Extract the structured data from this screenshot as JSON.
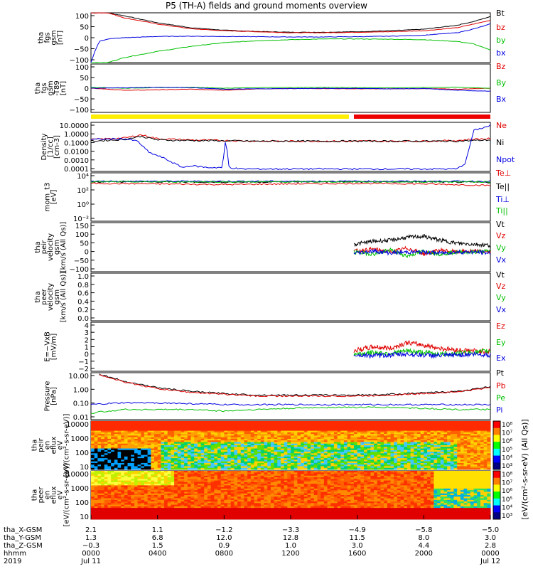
{
  "title": "P5 (TH-A) fields and ground moments overview",
  "chart_data": [
    {
      "type": "line",
      "panel_label": [
        "tha",
        "fgs",
        "gsm",
        "[nT]"
      ],
      "ylim": [
        -100,
        100
      ],
      "yticks": [
        "100",
        "50",
        "0",
        "−50",
        "−100"
      ],
      "series": [
        {
          "name": "Bt",
          "color": "#000000",
          "x": [
            0,
            1,
            2,
            4,
            6,
            8,
            10,
            12,
            14,
            16,
            18,
            20,
            22,
            23,
            24
          ],
          "values": [
            100,
            100,
            88,
            60,
            40,
            30,
            25,
            22,
            22,
            24,
            28,
            34,
            50,
            65,
            85
          ]
        },
        {
          "name": "bz",
          "color": "#e00000",
          "x": [
            0,
            1,
            2,
            4,
            6,
            8,
            10,
            12,
            14,
            16,
            18,
            20,
            22,
            23,
            24
          ],
          "values": [
            100,
            100,
            80,
            55,
            36,
            28,
            24,
            20,
            20,
            22,
            24,
            28,
            40,
            55,
            70
          ]
        },
        {
          "name": "by",
          "color": "#00c000",
          "x": [
            0,
            1,
            2,
            4,
            6,
            8,
            10,
            12,
            14,
            16,
            18,
            20,
            22,
            23,
            24
          ],
          "values": [
            -100,
            -100,
            -80,
            -55,
            -35,
            -20,
            -12,
            -8,
            -5,
            -5,
            -6,
            -8,
            -15,
            -25,
            -50
          ]
        },
        {
          "name": "bx",
          "color": "#0000e0",
          "x": [
            0,
            0.2,
            0.5,
            1,
            2,
            4,
            6,
            8,
            10,
            12,
            14,
            16,
            18,
            20,
            22,
            23,
            24
          ],
          "values": [
            -100,
            -60,
            -15,
            -5,
            0,
            5,
            6,
            5,
            4,
            3,
            3,
            4,
            6,
            10,
            20,
            35,
            55
          ]
        }
      ]
    },
    {
      "type": "line",
      "panel_label": [
        "tha",
        "fgs",
        "gsm",
        "-T89",
        "[nT]"
      ],
      "ylim": [
        -120,
        120
      ],
      "yticks": [
        "100",
        "50",
        "0",
        "−50",
        "−100"
      ],
      "series": [
        {
          "name": "Bz",
          "color": "#e00000",
          "x": [
            0,
            2,
            4,
            6,
            8,
            10,
            12,
            14,
            16,
            18,
            20,
            22,
            24
          ],
          "values": [
            0,
            -10,
            -8,
            -5,
            -10,
            -3,
            -2,
            -2,
            -3,
            -3,
            -2,
            -5,
            0
          ]
        },
        {
          "name": "By",
          "color": "#00c000",
          "x": [
            0,
            2,
            4,
            6,
            8,
            10,
            12,
            14,
            16,
            18,
            20,
            22,
            24
          ],
          "values": [
            5,
            0,
            3,
            5,
            0,
            3,
            4,
            5,
            3,
            2,
            4,
            5,
            0
          ]
        },
        {
          "name": "Bx",
          "color": "#0000e0",
          "x": [
            0,
            2,
            4,
            6,
            8,
            10,
            12,
            14,
            16,
            18,
            20,
            22,
            24
          ],
          "values": [
            0,
            2,
            5,
            3,
            -5,
            -3,
            -2,
            -1,
            -1,
            -3,
            -2,
            -10,
            -15
          ]
        }
      ]
    },
    {
      "type": "line",
      "log": true,
      "panel_label": [
        "Density",
        "[1/cc]",
        "[cm-3]"
      ],
      "ylim": [
        0.0001,
        100
      ],
      "yticks": [
        "10.0000",
        "1.0000",
        "0.1000",
        "0.0100",
        "0.0010",
        "0.0001"
      ],
      "series": [
        {
          "name": "Ne",
          "color": "#e00000",
          "x": [
            0,
            2,
            3,
            4,
            6,
            8,
            10,
            12,
            14,
            16,
            18,
            20,
            22,
            23,
            24
          ],
          "values": [
            0.8,
            1.2,
            3,
            1,
            0.7,
            0.6,
            0.5,
            0.5,
            0.5,
            0.5,
            0.5,
            0.5,
            0.6,
            0.9,
            1
          ]
        },
        {
          "name": "Ni",
          "color": "#000000",
          "x": [
            0,
            2,
            3,
            4,
            6,
            8,
            10,
            12,
            14,
            16,
            18,
            20,
            22,
            23,
            24
          ],
          "values": [
            0.5,
            0.8,
            2,
            0.7,
            0.6,
            0.55,
            0.5,
            0.5,
            0.5,
            0.5,
            0.5,
            0.5,
            0.5,
            0.6,
            0.7
          ]
        },
        {
          "name": "Npot",
          "color": "#0000e0",
          "x": [
            0,
            2,
            2.8,
            3.5,
            4.3,
            5.5,
            6,
            7,
            7.9,
            8.1,
            8.3,
            9,
            12,
            16,
            20,
            22,
            22.5,
            23,
            24
          ],
          "values": [
            0.8,
            1,
            0.5,
            0.02,
            0.005,
            0.0003,
            0.0005,
            0.0003,
            0.0003,
            1,
            0.0003,
            0.0002,
            0.0002,
            0.0002,
            0.0002,
            0.0002,
            0.001,
            10,
            40
          ]
        }
      ]
    },
    {
      "type": "line",
      "log": true,
      "panel_label": [
        "mom_t3",
        "[eV]"
      ],
      "ylim": [
        0.01,
        100000
      ],
      "yticks": [
        "10⁴",
        "10²",
        "10⁰",
        "10⁻²"
      ],
      "series": [
        {
          "name": "Te⊥",
          "color": "#e00000",
          "x": [
            0,
            4,
            8,
            12,
            16,
            20,
            24
          ],
          "values": [
            3000,
            2500,
            2000,
            2500,
            3000,
            2500,
            1500
          ]
        },
        {
          "name": "Te||",
          "color": "#000000",
          "x": [
            0,
            4,
            8,
            12,
            16,
            20,
            24
          ],
          "values": [
            5000,
            5000,
            4500,
            5000,
            5000,
            5000,
            4000
          ]
        },
        {
          "name": "Ti⊥",
          "color": "#0000e0",
          "x": [
            0,
            4,
            8,
            12,
            16,
            20,
            24
          ],
          "values": [
            6000,
            6000,
            6000,
            6000,
            6000,
            6000,
            6000
          ]
        },
        {
          "name": "Ti||",
          "color": "#00c000",
          "x": [
            0,
            4,
            8,
            12,
            16,
            20,
            24
          ],
          "values": [
            5000,
            5000,
            5000,
            5000,
            5000,
            5000,
            5000
          ]
        }
      ]
    },
    {
      "type": "line",
      "panel_label": [
        "tha",
        "peir",
        "velocity",
        "gsm",
        "[km/s (All Qs)]"
      ],
      "ylim": [
        -100,
        150
      ],
      "yticks": [
        "150",
        "100",
        "50",
        "0",
        "−50",
        "−100"
      ],
      "x_start": 15.8,
      "series": [
        {
          "name": "Vt",
          "color": "#000000",
          "x": [
            15.8,
            17,
            18,
            19,
            20,
            21,
            22,
            23,
            24
          ],
          "values": [
            40,
            55,
            60,
            75,
            80,
            60,
            45,
            40,
            35
          ]
        },
        {
          "name": "Vz",
          "color": "#e00000",
          "x": [
            15.8,
            17,
            18,
            19,
            20,
            21,
            22,
            23,
            24
          ],
          "values": [
            5,
            15,
            0,
            20,
            -10,
            10,
            0,
            5,
            0
          ]
        },
        {
          "name": "Vy",
          "color": "#00c000",
          "x": [
            15.8,
            17,
            18,
            19,
            20,
            21,
            22,
            23,
            24
          ],
          "values": [
            0,
            -10,
            10,
            -20,
            5,
            -10,
            0,
            0,
            5
          ]
        },
        {
          "name": "Vx",
          "color": "#0000e0",
          "x": [
            15.8,
            17,
            18,
            19,
            20,
            21,
            22,
            23,
            24
          ],
          "values": [
            -5,
            5,
            -5,
            0,
            0,
            -5,
            0,
            0,
            -5
          ]
        }
      ]
    },
    {
      "type": "line",
      "panel_label": [
        "tha",
        "peer",
        "velocity",
        "gsm",
        "[km/s (All Qs)]"
      ],
      "ylim": [
        0,
        1
      ],
      "yticks": [
        "1.0",
        "0.8",
        "0.6",
        "0.4",
        "0.2",
        "0.0"
      ],
      "series": [
        {
          "name": "Vt",
          "color": "#000000",
          "x": [],
          "values": []
        },
        {
          "name": "Vz",
          "color": "#e00000",
          "x": [],
          "values": []
        },
        {
          "name": "Vy",
          "color": "#00c000",
          "x": [],
          "values": []
        },
        {
          "name": "Vx",
          "color": "#0000e0",
          "x": [],
          "values": []
        }
      ]
    },
    {
      "type": "line",
      "panel_label": [
        "E=−VxB",
        "[mV/m]"
      ],
      "ylim": [
        -2,
        4
      ],
      "yticks": [
        "4",
        "3",
        "2",
        "1",
        "0",
        "−1",
        "−2"
      ],
      "x_start": 15.8,
      "series": [
        {
          "name": "Ez",
          "color": "#e00000",
          "x": [
            15.8,
            17,
            18,
            19,
            20,
            21,
            22,
            23,
            24
          ],
          "values": [
            0.5,
            1,
            0.8,
            1.5,
            1.2,
            0.8,
            0.6,
            0.5,
            0.4
          ]
        },
        {
          "name": "Ey",
          "color": "#00c000",
          "x": [
            15.8,
            17,
            18,
            19,
            20,
            21,
            22,
            23,
            24
          ],
          "values": [
            0.1,
            0.3,
            0.2,
            0.5,
            0.3,
            0.1,
            0.2,
            0.3,
            0.5
          ]
        },
        {
          "name": "Ex",
          "color": "#0000e0",
          "x": [
            15.8,
            17,
            18,
            19,
            20,
            21,
            22,
            23,
            24
          ],
          "values": [
            0,
            -0.1,
            0,
            0.1,
            0,
            -0.1,
            0,
            0.1,
            0
          ]
        }
      ]
    },
    {
      "type": "line",
      "log": true,
      "panel_label": [
        "Pressure",
        "[nPa]"
      ],
      "ylim": [
        0.003,
        20
      ],
      "yticks": [
        "10.00",
        "1.00",
        "0.10",
        "0.01"
      ],
      "series": [
        {
          "name": "Pt",
          "color": "#000000",
          "x": [
            0.5,
            1,
            2,
            4,
            6,
            8,
            10,
            12,
            14,
            16,
            18,
            20,
            22,
            23,
            24
          ],
          "values": [
            15,
            10,
            4,
            1.2,
            0.6,
            0.4,
            0.3,
            0.3,
            0.3,
            0.3,
            0.35,
            0.45,
            0.6,
            0.9,
            1.5
          ]
        },
        {
          "name": "Pb",
          "color": "#e00000",
          "x": [
            0.5,
            1,
            2,
            4,
            6,
            8,
            10,
            12,
            14,
            16,
            18,
            20,
            22,
            23,
            24
          ],
          "values": [
            14,
            9,
            3.5,
            1,
            0.5,
            0.35,
            0.25,
            0.25,
            0.25,
            0.25,
            0.3,
            0.4,
            0.55,
            0.8,
            1.3
          ]
        },
        {
          "name": "Pe",
          "color": "#00c000",
          "x": [
            0,
            1,
            2,
            4,
            6,
            8,
            10,
            12,
            14,
            16,
            18,
            20,
            22,
            24
          ],
          "values": [
            0.01,
            0.015,
            0.02,
            0.02,
            0.02,
            0.015,
            0.02,
            0.025,
            0.03,
            0.03,
            0.03,
            0.025,
            0.02,
            0.02
          ]
        },
        {
          "name": "Pi",
          "color": "#0000e0",
          "x": [
            0,
            1,
            2,
            4,
            6,
            8,
            10,
            12,
            14,
            16,
            18,
            20,
            22,
            24
          ],
          "values": [
            0.05,
            0.06,
            0.07,
            0.07,
            0.06,
            0.05,
            0.05,
            0.05,
            0.05,
            0.05,
            0.05,
            0.05,
            0.05,
            0.05
          ]
        }
      ]
    },
    {
      "type": "heatmap",
      "panel_label": [
        "tha",
        "peir",
        "en",
        "eflux",
        "eV",
        "[eV/(cm²-s-sr-eV)]"
      ],
      "yticks": [
        "10000",
        "1000",
        "100",
        "10"
      ],
      "colorbar_ticks": [
        "10⁸",
        "10⁷",
        "10⁶",
        "10⁵",
        "10⁴",
        "10³"
      ]
    },
    {
      "type": "heatmap",
      "panel_label": [
        "tha",
        "peer",
        "en",
        "eflux",
        "eV",
        "[eV/(cm²-s-sr-eV)]"
      ],
      "yticks": [
        "10000",
        "1000",
        "100",
        "10"
      ],
      "colorbar_ticks": [
        "10⁸",
        "10⁷",
        "10⁶",
        "10⁵",
        "10⁴",
        "10³"
      ]
    }
  ],
  "colorbar_label": "[eV/(cm²-s-sr-eV) (All Qs)]",
  "xaxis": {
    "row_labels": [
      "tha_X-GSM",
      "tha_Y-GSM",
      "tha_Z-GSM",
      "hhmm",
      "2019"
    ],
    "ticks": [
      {
        "x": 0,
        "vals": [
          "2.1",
          "1.3",
          "−0.3",
          "0000",
          "Jul 11"
        ]
      },
      {
        "x": 4,
        "vals": [
          "1.1",
          "6.8",
          "1.5",
          "0400",
          ""
        ]
      },
      {
        "x": 8,
        "vals": [
          "−1.2",
          "12.0",
          "0.9",
          "0800",
          ""
        ]
      },
      {
        "x": 12,
        "vals": [
          "−3.3",
          "12.8",
          "1.0",
          "1200",
          ""
        ]
      },
      {
        "x": 16,
        "vals": [
          "−4.9",
          "11.5",
          "3.0",
          "1600",
          ""
        ]
      },
      {
        "x": 20,
        "vals": [
          "−5.8",
          "8.0",
          "4.4",
          "2000",
          ""
        ]
      },
      {
        "x": 24,
        "vals": [
          "−5.0",
          "3.0",
          "2.8",
          "0000",
          "Jul 12"
        ]
      }
    ]
  }
}
